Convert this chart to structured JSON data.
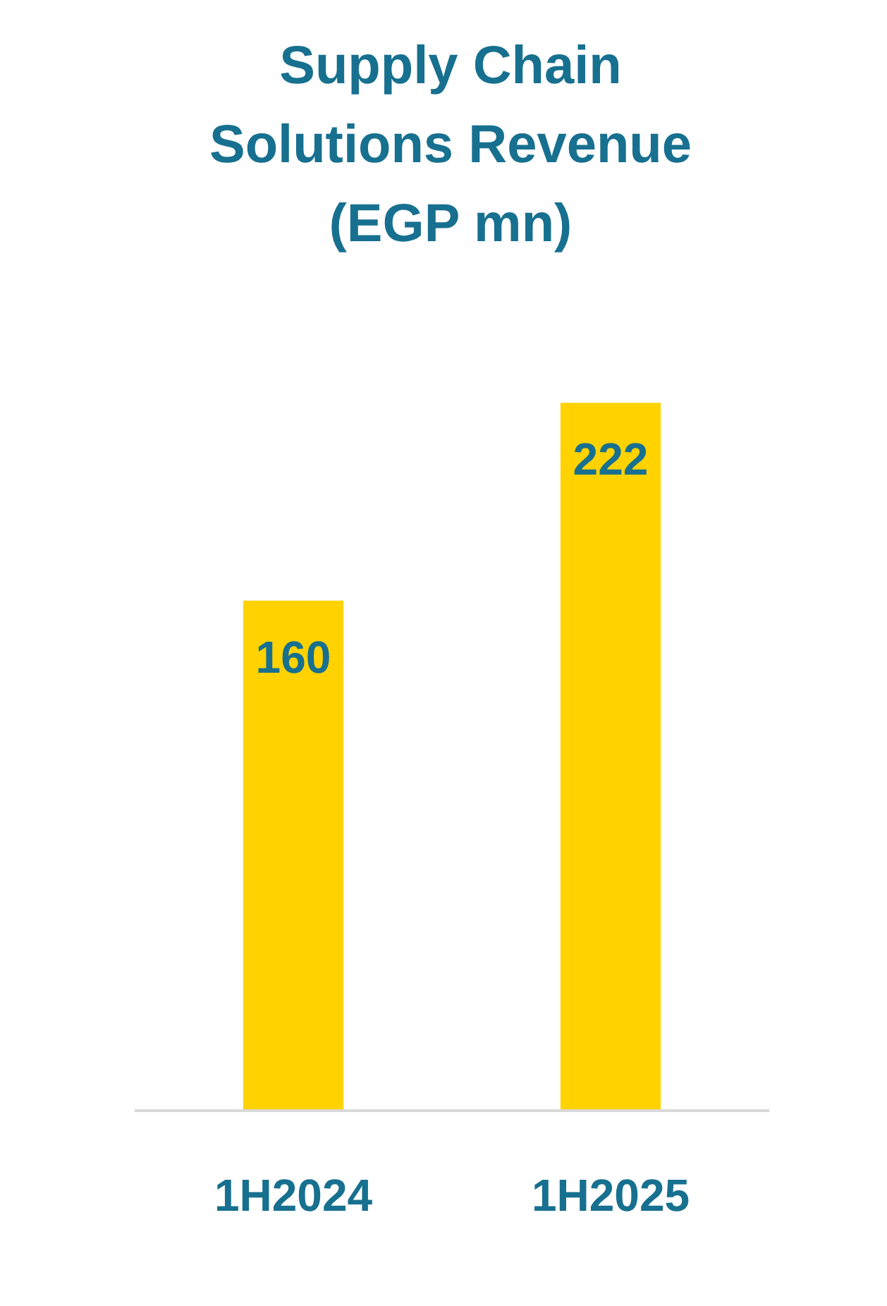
{
  "chart_data": {
    "type": "bar",
    "title": "Supply Chain Solutions Revenue (EGP mn)",
    "categories": [
      "1H2024",
      "1H2025"
    ],
    "values": [
      160,
      222
    ],
    "color": "#ffd200",
    "data_labels": true,
    "grid": false
  }
}
